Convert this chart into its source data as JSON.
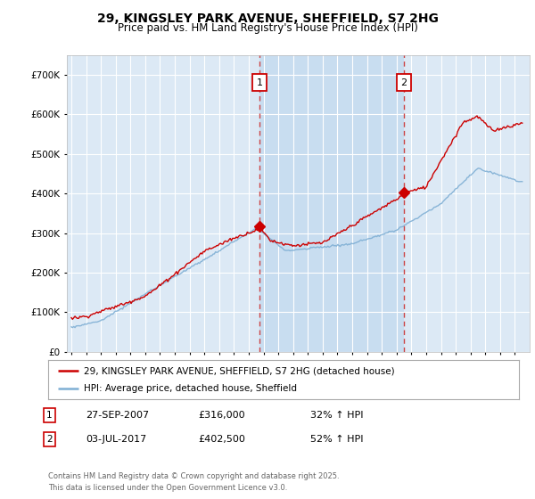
{
  "title_line1": "29, KINGSLEY PARK AVENUE, SHEFFIELD, S7 2HG",
  "title_line2": "Price paid vs. HM Land Registry's House Price Index (HPI)",
  "background_color": "#dce9f5",
  "shaded_color": "#c8ddf0",
  "outer_bg_color": "#ffffff",
  "red_color": "#cc0000",
  "blue_color": "#7fafd4",
  "marker1_year": 2007.75,
  "marker1_value": 316000,
  "marker2_year": 2017.5,
  "marker2_value": 402500,
  "legend1": "29, KINGSLEY PARK AVENUE, SHEFFIELD, S7 2HG (detached house)",
  "legend2": "HPI: Average price, detached house, Sheffield",
  "annotation1_date": "27-SEP-2007",
  "annotation1_price": "£316,000",
  "annotation1_hpi": "32% ↑ HPI",
  "annotation2_date": "03-JUL-2017",
  "annotation2_price": "£402,500",
  "annotation2_hpi": "52% ↑ HPI",
  "footer": "Contains HM Land Registry data © Crown copyright and database right 2025.\nThis data is licensed under the Open Government Licence v3.0.",
  "ylim_max": 750000,
  "ylim_min": 0,
  "xlim_min": 1994.7,
  "xlim_max": 2026.0
}
